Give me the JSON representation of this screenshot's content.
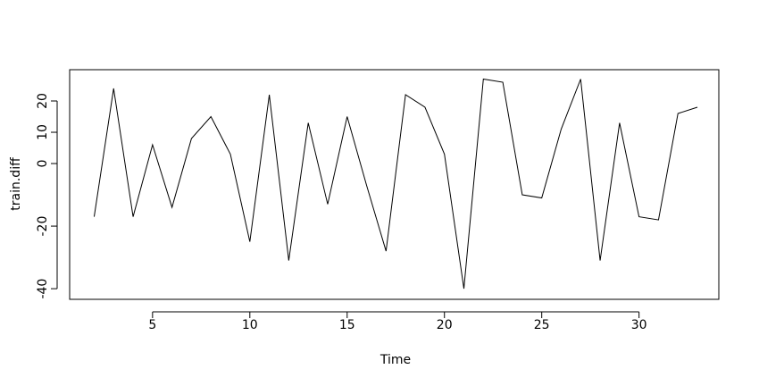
{
  "chart_data": {
    "type": "line",
    "x_label": "Time",
    "y_label": "train.diff",
    "x": [
      2,
      3,
      4,
      5,
      6,
      7,
      8,
      9,
      10,
      11,
      12,
      13,
      14,
      15,
      16,
      17,
      18,
      19,
      20,
      21,
      22,
      23,
      24,
      25,
      26,
      27,
      28,
      29,
      30,
      31,
      32,
      33
    ],
    "series": [
      {
        "color": "#000000",
        "values": [
          -17,
          24,
          -17,
          6,
          -14,
          8,
          15,
          3,
          -25,
          22,
          -31,
          13,
          -13,
          15,
          -7,
          -28,
          22,
          18,
          3,
          -40,
          27,
          26,
          -10,
          -11,
          11,
          27,
          -31,
          13,
          -17,
          -18,
          16,
          18
        ]
      }
    ],
    "xlim": [
      0.74,
      34.1
    ],
    "ylim": [
      -43.4,
      30
    ],
    "xticks": [
      5,
      10,
      15,
      20,
      25,
      30
    ],
    "yticks": [
      -40,
      -20,
      0,
      10,
      20
    ]
  }
}
